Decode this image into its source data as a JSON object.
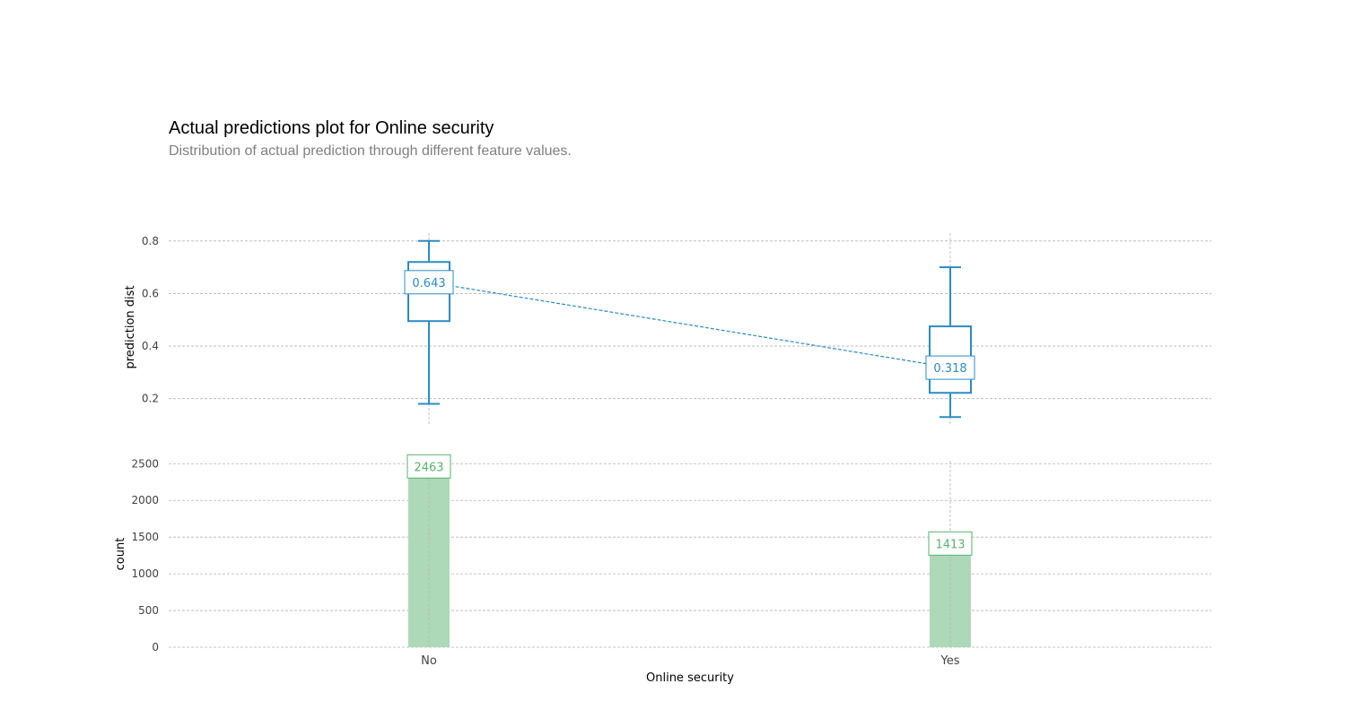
{
  "title": "Actual predictions plot for Online security",
  "subtitle": "Distribution of actual prediction through different feature values.",
  "colors": {
    "box": "#2b8cc4",
    "bar": "#add9b8",
    "bar_label": "#58b26b",
    "grid": "#b3b3b3",
    "tick_text": "#424242"
  },
  "chart_data": [
    {
      "type": "box",
      "ylabel": "prediction dist",
      "y_ticks": [
        0.2,
        0.4,
        0.6,
        0.8
      ],
      "ylim": [
        0.1,
        0.83
      ],
      "categories": [
        "No",
        "Yes"
      ],
      "boxes": [
        {
          "category": "No",
          "whisker_low": 0.18,
          "q1": 0.495,
          "median": 0.643,
          "q3": 0.72,
          "whisker_high": 0.8,
          "label": "0.643"
        },
        {
          "category": "Yes",
          "whisker_low": 0.13,
          "q1": 0.222,
          "median": 0.318,
          "q3": 0.475,
          "whisker_high": 0.7,
          "label": "0.318"
        }
      ],
      "median_trend_line": true
    },
    {
      "type": "bar",
      "ylabel": "count",
      "xlabel": "Online security",
      "y_ticks": [
        0,
        500,
        1000,
        1500,
        2000,
        2500
      ],
      "ylim": [
        0,
        2540
      ],
      "categories": [
        "No",
        "Yes"
      ],
      "values": [
        2463,
        1413
      ],
      "labels": [
        "2463",
        "1413"
      ]
    }
  ]
}
